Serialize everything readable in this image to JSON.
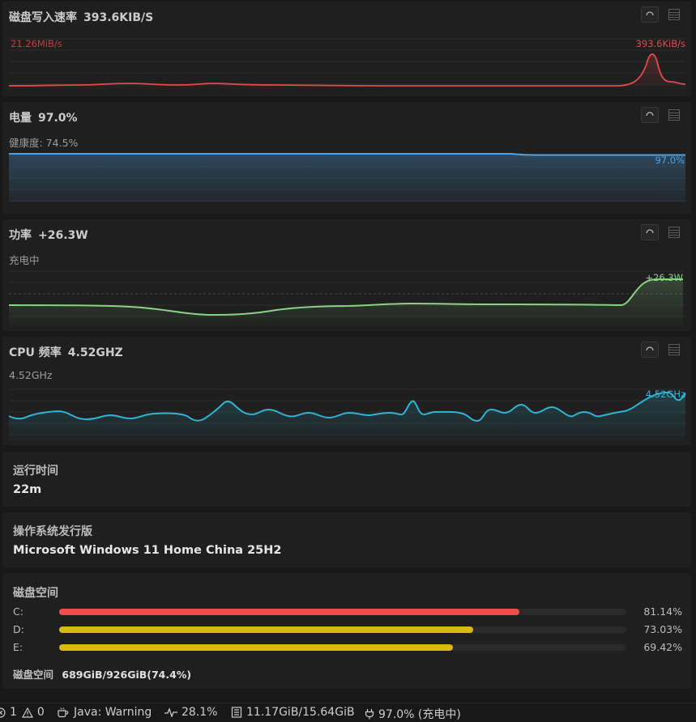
{
  "colors": {
    "disk": "#e5484d",
    "battery": "#4ea3e6",
    "power": "#89d185",
    "cpu": "#2fb4d6",
    "bar_red": "#f14c4c",
    "bar_yellow": "#d7ba0a"
  },
  "icons": [
    "refresh-icon",
    "list-icon",
    "warning-icon",
    "coffee-icon",
    "pulse-icon",
    "memory-icon",
    "plug-icon",
    "error-icon"
  ],
  "disk_write": {
    "title": "磁盘写入速率",
    "value": "393.6KIB/S",
    "max_label": "21.26MiB/s",
    "current_label": "393.6KiB/s"
  },
  "battery": {
    "title": "电量",
    "value": "97.0%",
    "health": "健康度: 74.5%",
    "current_label": "97.0%"
  },
  "power": {
    "title": "功率",
    "value": "+26.3W",
    "status": "充电中",
    "current_label": "+26.3W"
  },
  "cpu": {
    "title": "CPU 频率",
    "value": "4.52GHZ",
    "sub": "4.52GHz",
    "current_label": "4.52GHz"
  },
  "uptime": {
    "title": "运行时间",
    "value": "22m"
  },
  "os": {
    "title": "操作系统发行版",
    "value": "Microsoft Windows 11 Home China 25H2"
  },
  "disk_space": {
    "title": "磁盘空间",
    "drives": [
      {
        "label": "C:",
        "percent_text": "81.14%",
        "fraction": 0.8114,
        "color": "#f14c4c"
      },
      {
        "label": "D:",
        "percent_text": "73.03%",
        "fraction": 0.7303,
        "color": "#d7ba0a"
      },
      {
        "label": "E:",
        "percent_text": "69.42%",
        "fraction": 0.6942,
        "color": "#d7ba0a"
      }
    ],
    "summary_label": "磁盘空间",
    "summary_value": "689GiB/926GiB(74.4%)"
  },
  "statusbar": {
    "errors": "1",
    "warnings": "0",
    "java": "Java: Warning",
    "cpu": "28.1%",
    "memory": "11.17GiB/15.64GiB",
    "battery": "97.0% (充电中)"
  }
}
